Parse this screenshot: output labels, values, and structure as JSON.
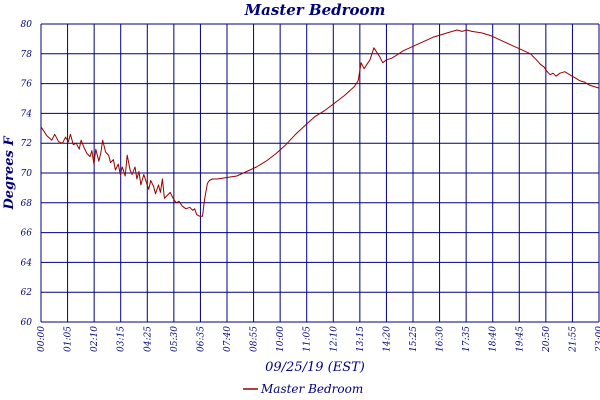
{
  "chart_data": {
    "type": "line",
    "title": "Master Bedroom",
    "xlabel": "09/25/19 (EST)",
    "ylabel": "Degrees F",
    "ylim": [
      60,
      80
    ],
    "yticks": [
      "60",
      "62",
      "64",
      "66",
      "68",
      "70",
      "72",
      "74",
      "76",
      "78",
      "80"
    ],
    "xticks": [
      "00:00",
      "01:05",
      "02:10",
      "03:15",
      "04:25",
      "05:30",
      "06:35",
      "07:40",
      "08:55",
      "10:00",
      "11:05",
      "12:10",
      "13:15",
      "14:20",
      "15:25",
      "16:30",
      "17:35",
      "18:40",
      "19:45",
      "20:50",
      "21:55",
      "23:00"
    ],
    "grid": true,
    "legend_position": "bottom-center",
    "series": [
      {
        "name": "Master Bedroom",
        "color": "#990000",
        "points": [
          [
            0,
            73.1
          ],
          [
            0.6,
            72.5
          ],
          [
            1.1,
            72.2
          ],
          [
            1.4,
            72.6
          ],
          [
            1.8,
            72.1
          ],
          [
            2.2,
            72.0
          ],
          [
            2.5,
            72.4
          ],
          [
            2.8,
            72.1
          ],
          [
            3.0,
            72.6
          ],
          [
            3.3,
            71.9
          ],
          [
            3.6,
            72.0
          ],
          [
            3.9,
            71.6
          ],
          [
            4.1,
            72.2
          ],
          [
            4.4,
            71.7
          ],
          [
            4.7,
            71.3
          ],
          [
            5.0,
            71.1
          ],
          [
            5.2,
            71.5
          ],
          [
            5.4,
            70.6
          ],
          [
            5.6,
            71.6
          ],
          [
            5.9,
            70.8
          ],
          [
            6.1,
            71.3
          ],
          [
            6.3,
            72.2
          ],
          [
            6.6,
            71.4
          ],
          [
            6.9,
            71.2
          ],
          [
            7.1,
            70.7
          ],
          [
            7.4,
            70.9
          ],
          [
            7.6,
            70.2
          ],
          [
            7.9,
            70.6
          ],
          [
            8.1,
            69.9
          ],
          [
            8.3,
            70.4
          ],
          [
            8.6,
            69.8
          ],
          [
            8.8,
            71.2
          ],
          [
            9.1,
            70.2
          ],
          [
            9.3,
            69.9
          ],
          [
            9.6,
            70.4
          ],
          [
            9.8,
            69.6
          ],
          [
            10.0,
            70.1
          ],
          [
            10.2,
            69.2
          ],
          [
            10.5,
            69.9
          ],
          [
            10.8,
            69.3
          ],
          [
            11.0,
            68.9
          ],
          [
            11.2,
            69.5
          ],
          [
            11.5,
            69.1
          ],
          [
            11.7,
            68.6
          ],
          [
            12.0,
            69.2
          ],
          [
            12.2,
            68.7
          ],
          [
            12.4,
            69.6
          ],
          [
            12.6,
            68.3
          ],
          [
            12.9,
            68.5
          ],
          [
            13.2,
            68.7
          ],
          [
            13.5,
            68.3
          ],
          [
            13.8,
            68.0
          ],
          [
            14.1,
            68.1
          ],
          [
            14.4,
            67.8
          ],
          [
            14.8,
            67.6
          ],
          [
            15.2,
            67.7
          ],
          [
            15.5,
            67.5
          ],
          [
            15.7,
            67.6
          ],
          [
            15.9,
            67.2
          ],
          [
            16.2,
            67.1
          ],
          [
            16.5,
            67.1
          ],
          [
            16.7,
            68.2
          ],
          [
            17.0,
            69.3
          ],
          [
            17.2,
            69.5
          ],
          [
            17.5,
            69.6
          ],
          [
            18.0,
            69.6
          ],
          [
            19.0,
            69.7
          ],
          [
            20.0,
            69.8
          ],
          [
            21.0,
            70.1
          ],
          [
            22.0,
            70.4
          ],
          [
            23.0,
            70.8
          ],
          [
            24.0,
            71.3
          ],
          [
            25.0,
            71.9
          ],
          [
            26.0,
            72.6
          ],
          [
            27.0,
            73.2
          ],
          [
            28.0,
            73.8
          ],
          [
            29.0,
            74.2
          ],
          [
            30.0,
            74.7
          ],
          [
            31.0,
            75.2
          ],
          [
            32.0,
            75.8
          ],
          [
            32.4,
            76.2
          ],
          [
            32.7,
            77.4
          ],
          [
            33.0,
            77.0
          ],
          [
            33.3,
            77.3
          ],
          [
            33.6,
            77.6
          ],
          [
            34.0,
            78.4
          ],
          [
            34.3,
            78.1
          ],
          [
            34.6,
            77.8
          ],
          [
            34.9,
            77.4
          ],
          [
            35.3,
            77.6
          ],
          [
            35.8,
            77.7
          ],
          [
            36.3,
            77.9
          ],
          [
            37.0,
            78.2
          ],
          [
            38.0,
            78.5
          ],
          [
            39.0,
            78.8
          ],
          [
            40.0,
            79.1
          ],
          [
            41.0,
            79.3
          ],
          [
            42.0,
            79.5
          ],
          [
            42.5,
            79.6
          ],
          [
            43.0,
            79.5
          ],
          [
            43.5,
            79.6
          ],
          [
            44.0,
            79.5
          ],
          [
            45.0,
            79.4
          ],
          [
            46.0,
            79.2
          ],
          [
            47.0,
            78.9
          ],
          [
            48.0,
            78.6
          ],
          [
            49.0,
            78.3
          ],
          [
            50.0,
            78.0
          ],
          [
            50.6,
            77.6
          ],
          [
            51.0,
            77.3
          ],
          [
            51.4,
            77.1
          ],
          [
            51.7,
            76.8
          ],
          [
            52.0,
            76.6
          ],
          [
            52.3,
            76.7
          ],
          [
            52.6,
            76.5
          ],
          [
            53.0,
            76.7
          ],
          [
            53.5,
            76.8
          ],
          [
            54.0,
            76.6
          ],
          [
            54.5,
            76.4
          ],
          [
            55.0,
            76.2
          ],
          [
            55.5,
            76.1
          ],
          [
            56.0,
            75.9
          ],
          [
            56.5,
            75.8
          ],
          [
            57.0,
            75.7
          ]
        ]
      }
    ]
  }
}
